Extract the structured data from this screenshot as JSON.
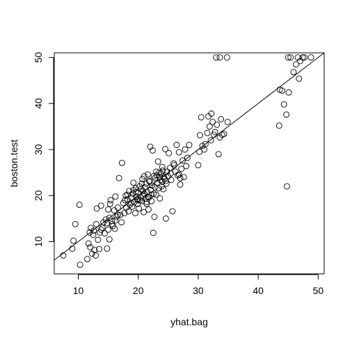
{
  "chart_data": {
    "type": "scatter",
    "title": "",
    "xlabel": "yhat.bag",
    "ylabel": "boston.test",
    "xlim": [
      6,
      51
    ],
    "ylim": [
      3,
      51
    ],
    "xticks": [
      10,
      20,
      30,
      40,
      50
    ],
    "yticks": [
      10,
      20,
      30,
      40,
      50
    ],
    "xtick_labels": [
      "10",
      "20",
      "30",
      "40",
      "50"
    ],
    "ytick_labels": [
      "10",
      "20",
      "30",
      "40",
      "50"
    ],
    "grid": false,
    "marker": "open-circle",
    "reference_line": {
      "slope": 1,
      "intercept": 0
    },
    "points": [
      [
        7.5,
        7.0
      ],
      [
        9.0,
        8.5
      ],
      [
        9.2,
        10.2
      ],
      [
        9.5,
        13.8
      ],
      [
        10.2,
        18.0
      ],
      [
        10.3,
        5.0
      ],
      [
        11.5,
        6.2
      ],
      [
        11.7,
        9.6
      ],
      [
        11.9,
        12.0
      ],
      [
        12.0,
        8.8
      ],
      [
        12.1,
        13.0
      ],
      [
        12.3,
        7.4
      ],
      [
        12.5,
        11.5
      ],
      [
        12.7,
        8.2
      ],
      [
        12.9,
        7.0
      ],
      [
        13.0,
        13.8
      ],
      [
        13.1,
        17.2
      ],
      [
        13.3,
        10.4
      ],
      [
        13.5,
        8.4
      ],
      [
        13.6,
        12.0
      ],
      [
        13.8,
        17.8
      ],
      [
        14.0,
        13.0
      ],
      [
        14.2,
        14.2
      ],
      [
        14.4,
        11.8
      ],
      [
        14.6,
        14.8
      ],
      [
        14.8,
        8.5
      ],
      [
        15.0,
        12.6
      ],
      [
        15.0,
        17.0
      ],
      [
        15.2,
        10.5
      ],
      [
        15.3,
        18.2
      ],
      [
        15.4,
        19.0
      ],
      [
        15.6,
        14.5
      ],
      [
        15.8,
        13.4
      ],
      [
        16.0,
        16.8
      ],
      [
        16.1,
        12.8
      ],
      [
        16.2,
        19.8
      ],
      [
        16.4,
        15.4
      ],
      [
        16.6,
        17.4
      ],
      [
        16.8,
        23.8
      ],
      [
        17.0,
        15.8
      ],
      [
        17.2,
        14.2
      ],
      [
        17.3,
        27.1
      ],
      [
        17.5,
        18.4
      ],
      [
        17.7,
        16.2
      ],
      [
        17.9,
        20.0
      ],
      [
        18.0,
        17.4
      ],
      [
        18.2,
        19.2
      ],
      [
        18.4,
        16.6
      ],
      [
        18.5,
        21.0
      ],
      [
        18.6,
        18.0
      ],
      [
        18.8,
        19.6
      ],
      [
        19.0,
        17.6
      ],
      [
        19.1,
        20.4
      ],
      [
        19.2,
        22.8
      ],
      [
        19.4,
        18.6
      ],
      [
        19.5,
        16.2
      ],
      [
        19.6,
        21.6
      ],
      [
        19.7,
        19.8
      ],
      [
        19.9,
        18.2
      ],
      [
        20.0,
        20.6
      ],
      [
        20.1,
        17.2
      ],
      [
        20.2,
        22.0
      ],
      [
        20.3,
        19.0
      ],
      [
        20.5,
        21.4
      ],
      [
        20.6,
        18.8
      ],
      [
        20.7,
        23.6
      ],
      [
        20.8,
        20.0
      ],
      [
        20.9,
        16.4
      ],
      [
        21.0,
        24.2
      ],
      [
        21.1,
        21.8
      ],
      [
        21.2,
        19.4
      ],
      [
        21.3,
        22.6
      ],
      [
        21.4,
        18.2
      ],
      [
        21.5,
        20.8
      ],
      [
        21.6,
        24.6
      ],
      [
        21.7,
        17.0
      ],
      [
        21.8,
        19.6
      ],
      [
        21.9,
        23.0
      ],
      [
        22.0,
        30.6
      ],
      [
        22.1,
        21.2
      ],
      [
        22.2,
        18.8
      ],
      [
        22.3,
        22.2
      ],
      [
        22.4,
        29.8
      ],
      [
        22.5,
        11.9
      ],
      [
        22.6,
        20.4
      ],
      [
        22.7,
        15.4
      ],
      [
        22.8,
        23.8
      ],
      [
        23.0,
        20.2
      ],
      [
        23.1,
        24.4
      ],
      [
        23.2,
        22.8
      ],
      [
        23.3,
        27.4
      ],
      [
        23.4,
        21.6
      ],
      [
        23.5,
        25.0
      ],
      [
        23.6,
        19.4
      ],
      [
        23.7,
        23.4
      ],
      [
        23.8,
        24.8
      ],
      [
        23.9,
        22.0
      ],
      [
        24.0,
        23.0
      ],
      [
        24.1,
        25.4
      ],
      [
        24.2,
        21.4
      ],
      [
        24.3,
        24.0
      ],
      [
        24.4,
        23.6
      ],
      [
        24.5,
        30.1
      ],
      [
        24.6,
        15.0
      ],
      [
        24.7,
        22.6
      ],
      [
        24.8,
        25.2
      ],
      [
        25.0,
        24.2
      ],
      [
        25.1,
        29.2
      ],
      [
        25.3,
        26.0
      ],
      [
        25.5,
        23.4
      ],
      [
        25.7,
        16.6
      ],
      [
        25.9,
        27.0
      ],
      [
        26.0,
        26.6
      ],
      [
        26.2,
        25.2
      ],
      [
        26.4,
        31.0
      ],
      [
        26.6,
        24.4
      ],
      [
        26.8,
        29.4
      ],
      [
        27.0,
        22.4
      ],
      [
        27.2,
        25.8
      ],
      [
        27.4,
        27.6
      ],
      [
        27.6,
        24.0
      ],
      [
        27.8,
        30.0
      ],
      [
        28.0,
        26.4
      ],
      [
        28.2,
        28.2
      ],
      [
        28.5,
        31.0
      ],
      [
        30.0,
        26.6
      ],
      [
        30.2,
        29.5
      ],
      [
        30.3,
        33.1
      ],
      [
        30.5,
        37.0
      ],
      [
        30.7,
        30.8
      ],
      [
        31.0,
        30.0
      ],
      [
        31.2,
        31.2
      ],
      [
        31.5,
        33.6
      ],
      [
        31.7,
        37.2
      ],
      [
        31.9,
        35.0
      ],
      [
        32.1,
        32.0
      ],
      [
        32.2,
        37.8
      ],
      [
        32.4,
        36.0
      ],
      [
        32.6,
        33.2
      ],
      [
        32.8,
        33.8
      ],
      [
        33.1,
        35.4
      ],
      [
        33.4,
        29.0
      ],
      [
        33.6,
        32.6
      ],
      [
        33.8,
        36.6
      ],
      [
        34.0,
        33.2
      ],
      [
        34.3,
        33.4
      ],
      [
        34.9,
        36.0
      ],
      [
        33.0,
        50.0
      ],
      [
        33.6,
        50.0
      ],
      [
        34.8,
        50.0
      ],
      [
        43.5,
        35.2
      ],
      [
        43.6,
        43.0
      ],
      [
        44.0,
        42.8
      ],
      [
        44.3,
        39.8
      ],
      [
        44.7,
        37.6
      ],
      [
        44.8,
        22.0
      ],
      [
        45.1,
        42.4
      ],
      [
        45.0,
        50.0
      ],
      [
        45.4,
        50.0
      ],
      [
        45.9,
        46.8
      ],
      [
        46.3,
        48.5
      ],
      [
        46.6,
        50.0
      ],
      [
        46.8,
        45.4
      ],
      [
        47.0,
        49.2
      ],
      [
        47.4,
        50.0
      ],
      [
        47.7,
        50.0
      ],
      [
        48.8,
        50.0
      ],
      [
        19.8,
        19.2
      ],
      [
        20.4,
        19.6
      ],
      [
        21.0,
        20.4
      ],
      [
        21.6,
        19.8
      ],
      [
        22.2,
        20.2
      ],
      [
        20.8,
        21.0
      ],
      [
        19.6,
        20.8
      ],
      [
        18.8,
        18.4
      ],
      [
        21.4,
        18.6
      ],
      [
        20.0,
        19.0
      ],
      [
        22.6,
        24.2
      ],
      [
        23.6,
        24.0
      ],
      [
        24.6,
        23.2
      ],
      [
        23.0,
        25.2
      ],
      [
        15.6,
        13.8
      ],
      [
        16.2,
        14.6
      ],
      [
        14.8,
        14.0
      ],
      [
        15.2,
        15.2
      ],
      [
        17.8,
        19.0
      ],
      [
        18.2,
        20.2
      ],
      [
        19.2,
        21.2
      ],
      [
        20.6,
        22.6
      ],
      [
        13.8,
        12.6
      ],
      [
        12.6,
        12.4
      ],
      [
        16.6,
        15.8
      ],
      [
        24.0,
        26.2
      ],
      [
        25.4,
        24.8
      ],
      [
        22.8,
        21.8
      ],
      [
        21.8,
        23.2
      ],
      [
        26.8,
        24.6
      ],
      [
        27.0,
        23.8
      ]
    ]
  }
}
